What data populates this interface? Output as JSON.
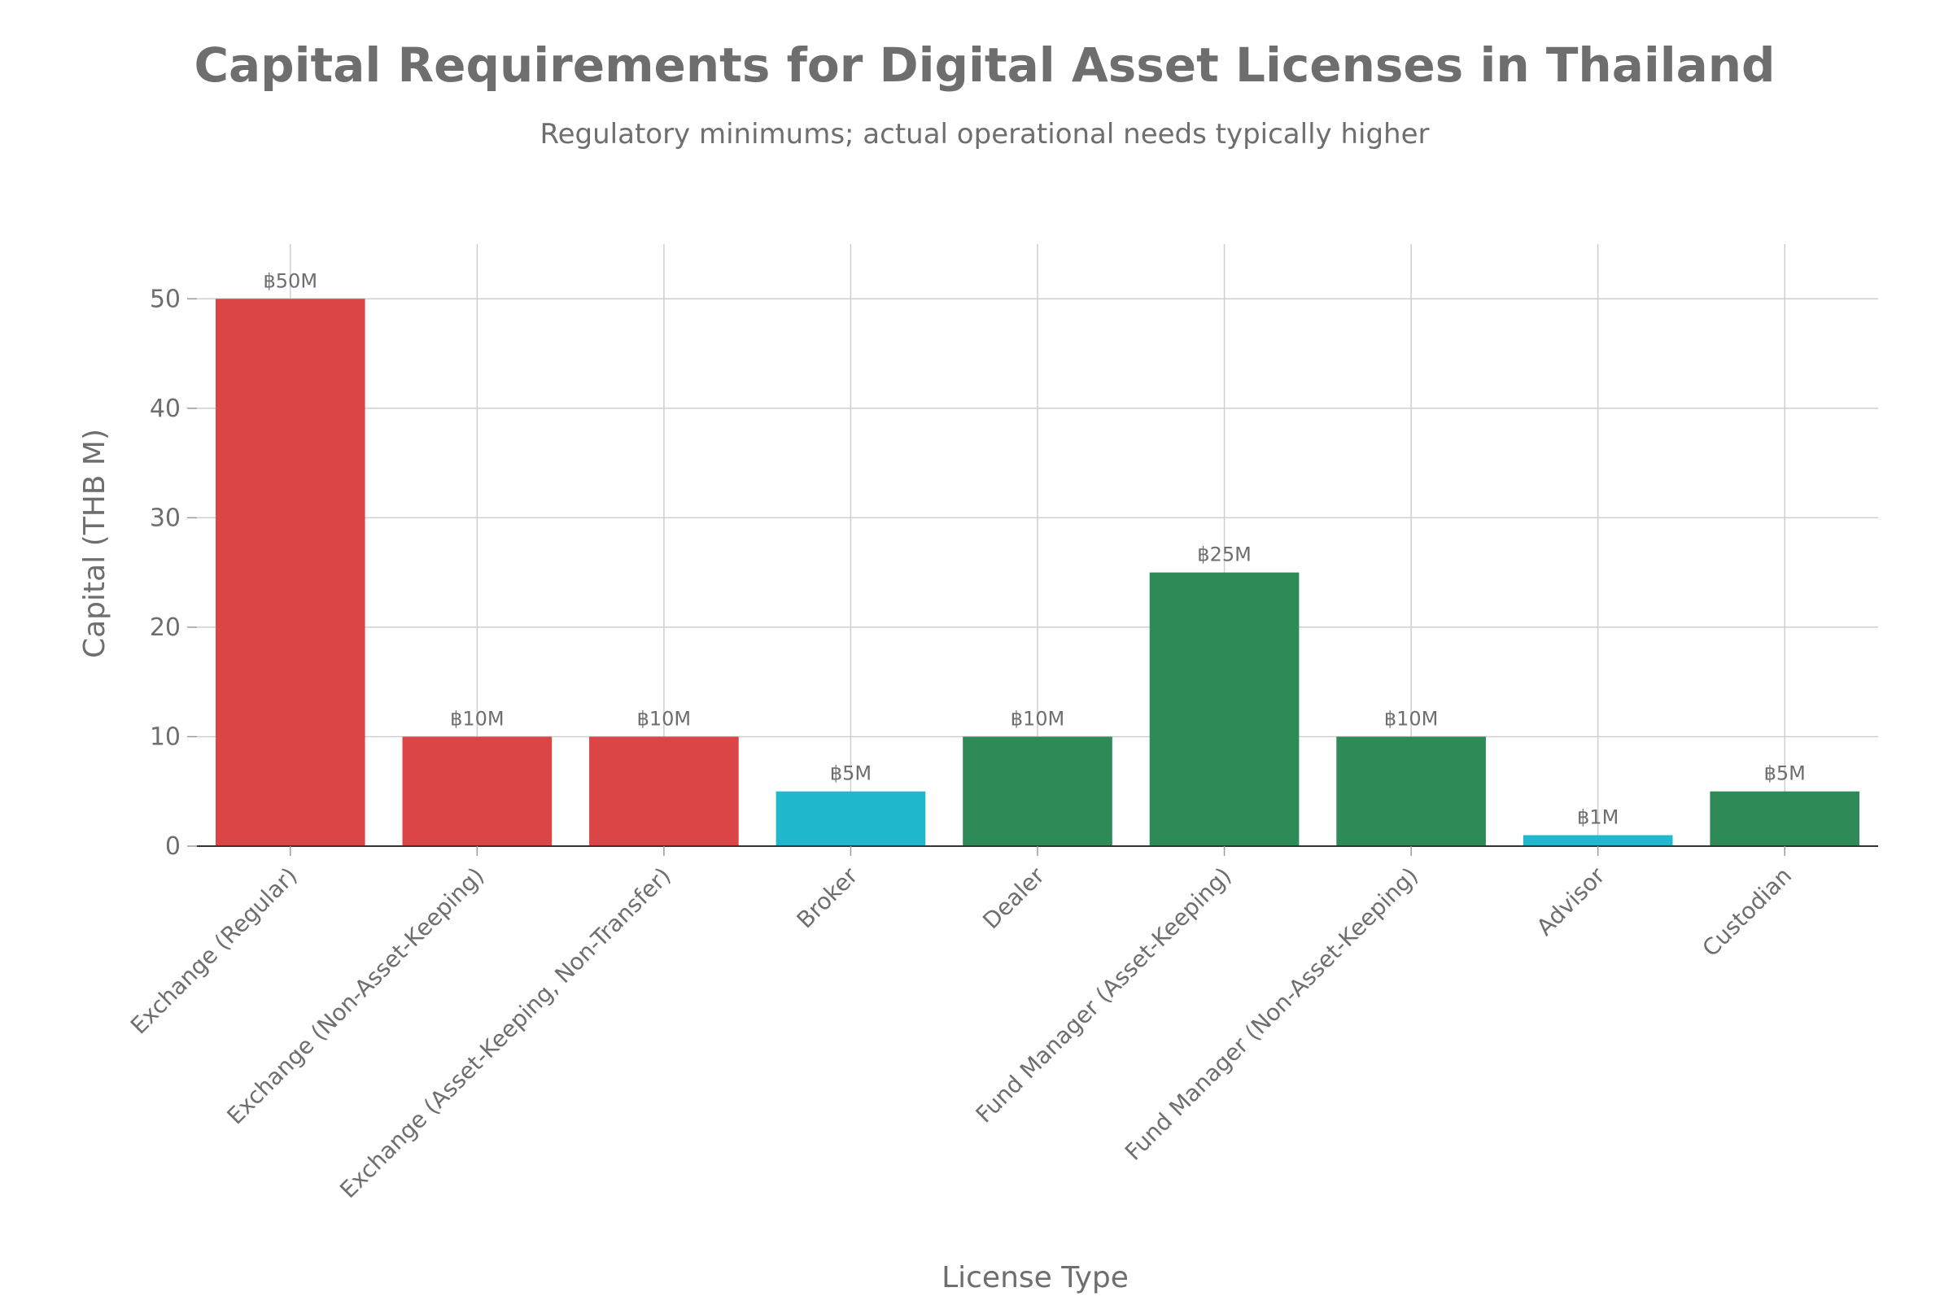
{
  "chart_data": {
    "type": "bar",
    "title": "Capital Requirements for Digital Asset Licenses in Thailand",
    "subtitle": "Regulatory minimums; actual operational needs typically higher",
    "xlabel": "License Type",
    "ylabel": "Capital (THB M)",
    "ylim": [
      0,
      55
    ],
    "yticks": [
      0,
      10,
      20,
      30,
      40,
      50
    ],
    "grid": true,
    "categories": [
      "Exchange (Regular)",
      "Exchange (Non-Asset-Keeping)",
      "Exchange (Asset-Keeping, Non-Transfer)",
      "Broker",
      "Dealer",
      "Fund Manager (Asset-Keeping)",
      "Fund Manager (Non-Asset-Keeping)",
      "Advisor",
      "Custodian"
    ],
    "values": [
      50,
      10,
      10,
      5,
      10,
      25,
      10,
      1,
      5
    ],
    "data_labels": [
      "฿50M",
      "฿10M",
      "฿10M",
      "฿5M",
      "฿10M",
      "฿25M",
      "฿10M",
      "฿1M",
      "฿5M"
    ],
    "colors": [
      "#db4545",
      "#db4545",
      "#db4545",
      "#1fb8cd",
      "#2e8b57",
      "#2e8b57",
      "#2e8b57",
      "#1fb8cd",
      "#2e8b57"
    ]
  }
}
